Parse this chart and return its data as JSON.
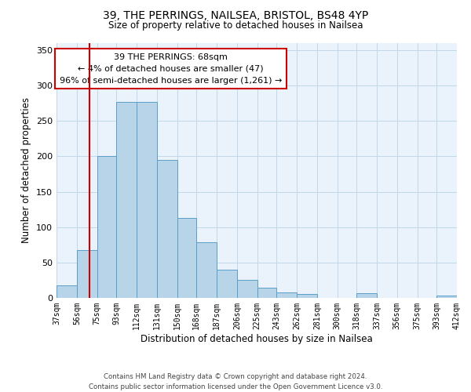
{
  "title_line1": "39, THE PERRINGS, NAILSEA, BRISTOL, BS48 4YP",
  "title_line2": "Size of property relative to detached houses in Nailsea",
  "xlabel": "Distribution of detached houses by size in Nailsea",
  "ylabel": "Number of detached properties",
  "bar_edges": [
    37,
    56,
    75,
    93,
    112,
    131,
    150,
    168,
    187,
    206,
    225,
    243,
    262,
    281,
    300,
    318,
    337,
    356,
    375,
    393,
    412
  ],
  "bar_heights": [
    18,
    68,
    200,
    277,
    277,
    195,
    113,
    79,
    40,
    25,
    14,
    8,
    5,
    0,
    0,
    7,
    0,
    0,
    0,
    3
  ],
  "bar_color": "#b8d4e8",
  "bar_edge_color": "#5a9ec9",
  "tick_labels": [
    "37sqm",
    "56sqm",
    "75sqm",
    "93sqm",
    "112sqm",
    "131sqm",
    "150sqm",
    "168sqm",
    "187sqm",
    "206sqm",
    "225sqm",
    "243sqm",
    "262sqm",
    "281sqm",
    "300sqm",
    "318sqm",
    "337sqm",
    "356sqm",
    "375sqm",
    "393sqm",
    "412sqm"
  ],
  "ylim": [
    0,
    360
  ],
  "yticks": [
    0,
    50,
    100,
    150,
    200,
    250,
    300,
    350
  ],
  "vline_x": 68,
  "vline_color": "#cc0000",
  "annotation_text": "39 THE PERRINGS: 68sqm\n← 4% of detached houses are smaller (47)\n96% of semi-detached houses are larger (1,261) →",
  "annotation_box_color": "#ffffff",
  "annotation_box_edge_color": "#cc0000",
  "footer_line1": "Contains HM Land Registry data © Crown copyright and database right 2024.",
  "footer_line2": "Contains public sector information licensed under the Open Government Licence v3.0.",
  "bg_color": "#eaf3fb",
  "grid_color": "#c0d8ea"
}
